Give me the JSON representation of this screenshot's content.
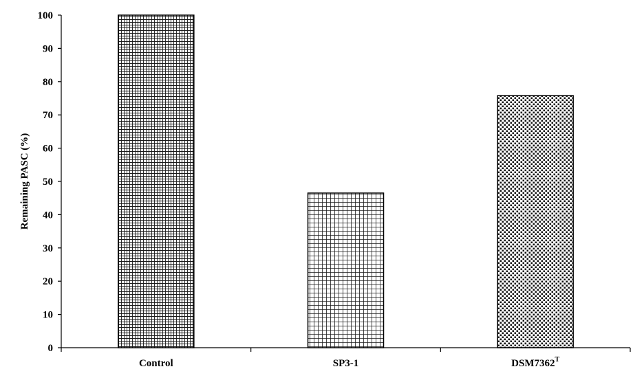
{
  "chart_data": {
    "type": "bar",
    "title": "",
    "xlabel": "",
    "ylabel": "Remaining PASC (%)",
    "ylim": [
      0,
      100
    ],
    "yticks": [
      0,
      10,
      20,
      30,
      40,
      50,
      60,
      70,
      80,
      90,
      100
    ],
    "categories": [
      "Control",
      "SP3-1",
      "DSM7362"
    ],
    "category_superscripts": [
      "",
      "",
      "T"
    ],
    "values": [
      100,
      46.5,
      75.8
    ],
    "bar_patterns": [
      "fine-grid",
      "grid",
      "dots"
    ],
    "grid": false,
    "legend": "none",
    "colors": {
      "bar_outline": "#000000",
      "pattern": "#1a1a1a",
      "bar_fill": "#ffffff",
      "axis": "#000000"
    }
  }
}
